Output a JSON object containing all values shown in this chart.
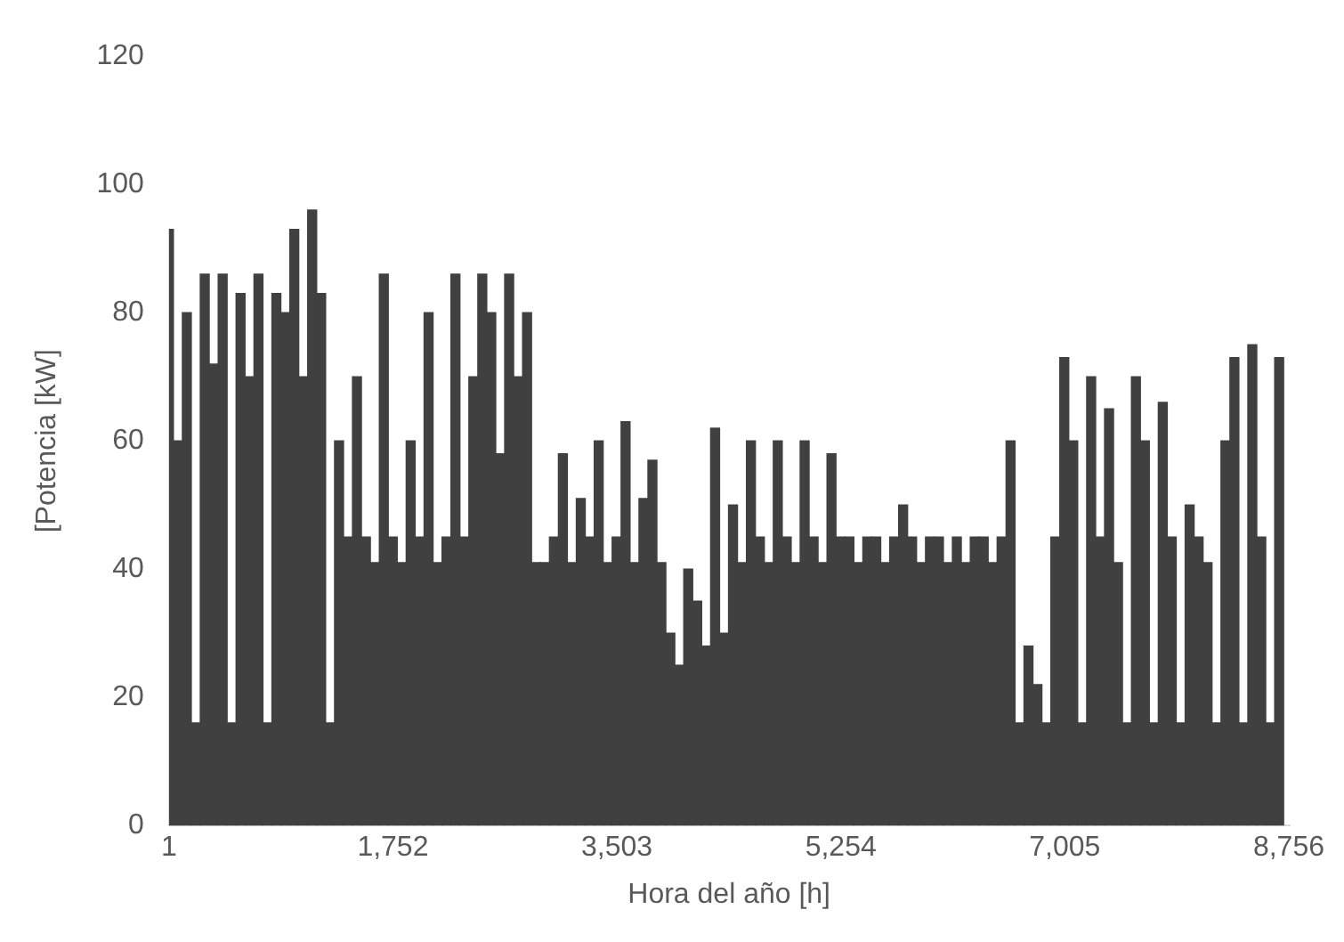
{
  "chart_data": {
    "type": "bar",
    "xlabel": "Hora del año [h]",
    "ylabel": "[Potencia [kW]",
    "x": [
      1,
      71,
      141,
      211,
      281,
      351,
      421,
      491,
      561,
      631,
      701,
      771,
      841,
      911,
      981,
      1051,
      1121,
      1191,
      1261,
      1331,
      1401,
      1471,
      1541,
      1611,
      1681,
      1751,
      1821,
      1891,
      1961,
      2031,
      2101,
      2171,
      2241,
      2311,
      2381,
      2451,
      2521,
      2591,
      2661,
      2731,
      2801,
      2871,
      2941,
      3011,
      3081,
      3151,
      3221,
      3291,
      3361,
      3431,
      3501,
      3571,
      3641,
      3711,
      3781,
      3851,
      3921,
      3991,
      4061,
      4131,
      4201,
      4271,
      4341,
      4411,
      4481,
      4551,
      4621,
      4691,
      4761,
      4831,
      4901,
      4971,
      5041,
      5111,
      5181,
      5251,
      5321,
      5391,
      5461,
      5531,
      5601,
      5671,
      5741,
      5811,
      5881,
      5951,
      6021,
      6091,
      6161,
      6231,
      6301,
      6371,
      6441,
      6511,
      6581,
      6651,
      6721,
      6791,
      6861,
      6931,
      7001,
      7071,
      7141,
      7211,
      7281,
      7351,
      7421,
      7491,
      7561,
      7631,
      7701,
      7771,
      7841,
      7911,
      7981,
      8051,
      8121,
      8191,
      8261,
      8331,
      8401,
      8471,
      8541,
      8611,
      8681
    ],
    "values": [
      93,
      60,
      80,
      16,
      86,
      72,
      86,
      16,
      83,
      70,
      86,
      16,
      83,
      80,
      93,
      70,
      96,
      83,
      16,
      60,
      45,
      70,
      45,
      41,
      86,
      45,
      41,
      60,
      45,
      80,
      41,
      45,
      86,
      45,
      70,
      86,
      80,
      58,
      86,
      70,
      80,
      41,
      41,
      45,
      58,
      41,
      51,
      45,
      60,
      41,
      45,
      63,
      41,
      51,
      57,
      41,
      30,
      25,
      40,
      35,
      28,
      62,
      30,
      50,
      41,
      60,
      45,
      41,
      60,
      45,
      41,
      60,
      45,
      41,
      58,
      45,
      45,
      41,
      45,
      45,
      41,
      45,
      50,
      45,
      41,
      45,
      45,
      41,
      45,
      41,
      45,
      45,
      41,
      45,
      60,
      16,
      28,
      22,
      16,
      45,
      73,
      60,
      16,
      70,
      45,
      65,
      41,
      16,
      70,
      60,
      16,
      66,
      45,
      16,
      50,
      45,
      41,
      16,
      60,
      73,
      16,
      75,
      45,
      16,
      73
    ],
    "color": "#404040",
    "xlim": [
      1,
      8760
    ],
    "xticks": [
      1,
      {
        "value": 1752,
        "label": "1,752"
      },
      {
        "value": 3503,
        "label": "3,503"
      },
      {
        "value": 5254,
        "label": "5,254"
      },
      {
        "value": 7005,
        "label": "7,005"
      },
      {
        "value": 8756,
        "label": "8,756"
      }
    ],
    "ylim": [
      0,
      120
    ],
    "yticks": [
      0,
      20,
      40,
      60,
      80,
      100,
      120
    ],
    "grid": false,
    "legend": false
  }
}
